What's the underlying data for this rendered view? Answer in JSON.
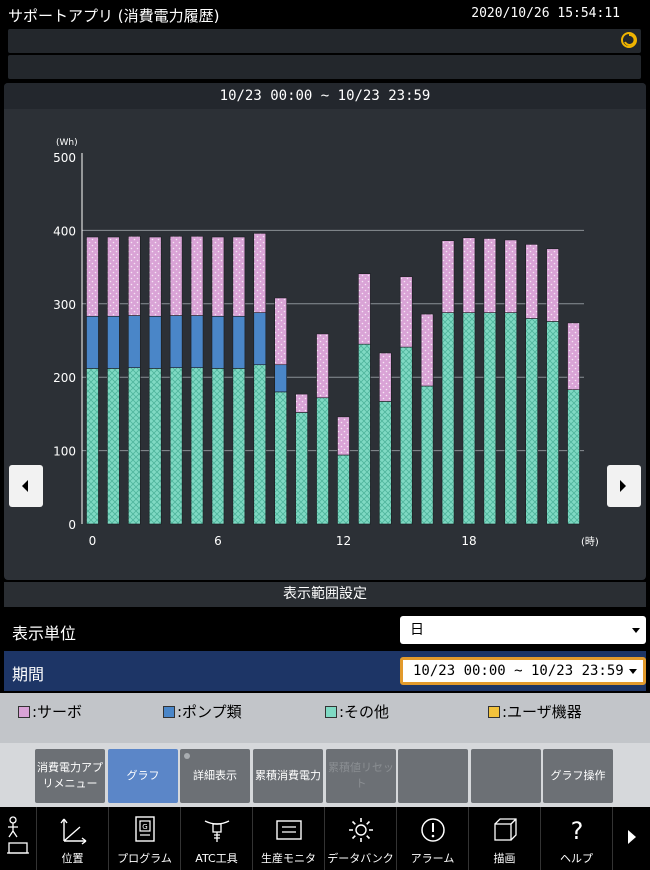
{
  "app": {
    "title": "サポートアプリ (消費電力履歴)",
    "clock": "2020/10/26 15:54:11"
  },
  "chart_header": "10/23 00:00 ~ 10/23 23:59",
  "chart_data": {
    "type": "bar",
    "stacked": true,
    "ylabel_unit": "(Wh)",
    "xlabel_unit": "(時)",
    "ylim": [
      0,
      500
    ],
    "yticks": [
      "0",
      "100",
      "200",
      "300",
      "400",
      "500"
    ],
    "xticks": [
      "0",
      "6",
      "12",
      "18"
    ],
    "x": [
      0,
      1,
      2,
      3,
      4,
      5,
      6,
      7,
      8,
      9,
      10,
      11,
      12,
      13,
      14,
      15,
      16,
      17,
      18,
      19,
      20,
      21,
      22,
      23
    ],
    "series": [
      {
        "name": "その他",
        "color": "#7fd9c3",
        "values": [
          212,
          212,
          213,
          212,
          213,
          213,
          212,
          212,
          217,
          180,
          152,
          172,
          94,
          245,
          167,
          241,
          188,
          288,
          288,
          288,
          288,
          280,
          276,
          183
        ]
      },
      {
        "name": "ポンプ類",
        "color": "#4a86c8",
        "values": [
          71,
          71,
          71,
          71,
          71,
          71,
          71,
          71,
          71,
          37,
          0,
          0,
          0,
          0,
          0,
          0,
          0,
          0,
          0,
          0,
          0,
          0,
          0,
          0
        ]
      },
      {
        "name": "サーボ",
        "color": "#d9a3d6",
        "values": [
          108,
          108,
          108,
          108,
          108,
          108,
          108,
          108,
          108,
          91,
          25,
          87,
          52,
          96,
          66,
          96,
          98,
          98,
          102,
          101,
          99,
          101,
          99,
          91
        ]
      }
    ]
  },
  "settings": {
    "header": "表示範囲設定",
    "unit_label": "表示単位",
    "unit_value": "日",
    "period_label": "期間",
    "period_value": "10/23 00:00 ~ 10/23 23:59"
  },
  "legend": [
    {
      "label": ":サーボ",
      "color": "#d9a3d6"
    },
    {
      "label": ":ポンプ類",
      "color": "#4a86c8"
    },
    {
      "label": ":その他",
      "color": "#7fd9c3"
    },
    {
      "label": ":ユーザ機器",
      "color": "#f2c23c"
    }
  ],
  "function_buttons": [
    "消費電力アプリメニュー",
    "グラフ",
    "詳細表示",
    "累積消費電力",
    "累積値リセット",
    "",
    "",
    "グラフ操作"
  ],
  "bottom_tabs": [
    "位置",
    "プログラム",
    "ATC工具",
    "生産モニタ",
    "データバンク",
    "アラーム",
    "描画",
    "ヘルプ"
  ]
}
